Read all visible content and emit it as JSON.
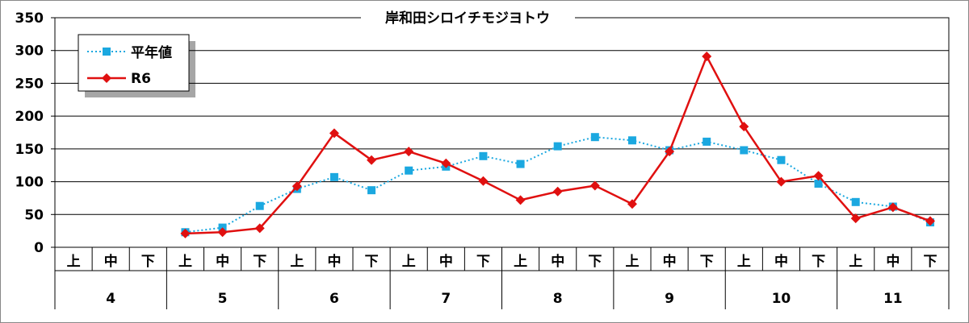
{
  "chart_data": {
    "type": "line",
    "title": "岸和田シロイチモジヨトウ",
    "xlabel": "",
    "ylabel": "",
    "ylim": [
      0,
      350
    ],
    "yticks": [
      0,
      50,
      100,
      150,
      200,
      250,
      300,
      350
    ],
    "grid": true,
    "legend_position": "top-left",
    "categories_sub": [
      "上",
      "中",
      "下",
      "上",
      "中",
      "下",
      "上",
      "中",
      "下",
      "上",
      "中",
      "下",
      "上",
      "中",
      "下",
      "上",
      "中",
      "下",
      "上",
      "中",
      "下",
      "上",
      "中",
      "下"
    ],
    "categories_group": [
      {
        "label": "4",
        "span": 3
      },
      {
        "label": "5",
        "span": 3
      },
      {
        "label": "6",
        "span": 3
      },
      {
        "label": "7",
        "span": 3
      },
      {
        "label": "8",
        "span": 3
      },
      {
        "label": "9",
        "span": 3
      },
      {
        "label": "10",
        "span": 3
      },
      {
        "label": "11",
        "span": 3
      }
    ],
    "series": [
      {
        "name": "平年値",
        "color": "#1ba8e0",
        "line_style": "dotted",
        "marker": "square",
        "values": [
          null,
          null,
          null,
          23,
          30,
          63,
          89,
          107,
          87,
          117,
          123,
          139,
          127,
          154,
          168,
          163,
          148,
          161,
          148,
          133,
          97,
          69,
          62,
          38
        ]
      },
      {
        "name": "R6",
        "color": "#e01010",
        "line_style": "solid",
        "marker": "diamond",
        "values": [
          null,
          null,
          null,
          21,
          23,
          29,
          93,
          174,
          133,
          146,
          128,
          101,
          72,
          85,
          94,
          66,
          146,
          291,
          184,
          100,
          109,
          44,
          61,
          40
        ]
      }
    ]
  }
}
